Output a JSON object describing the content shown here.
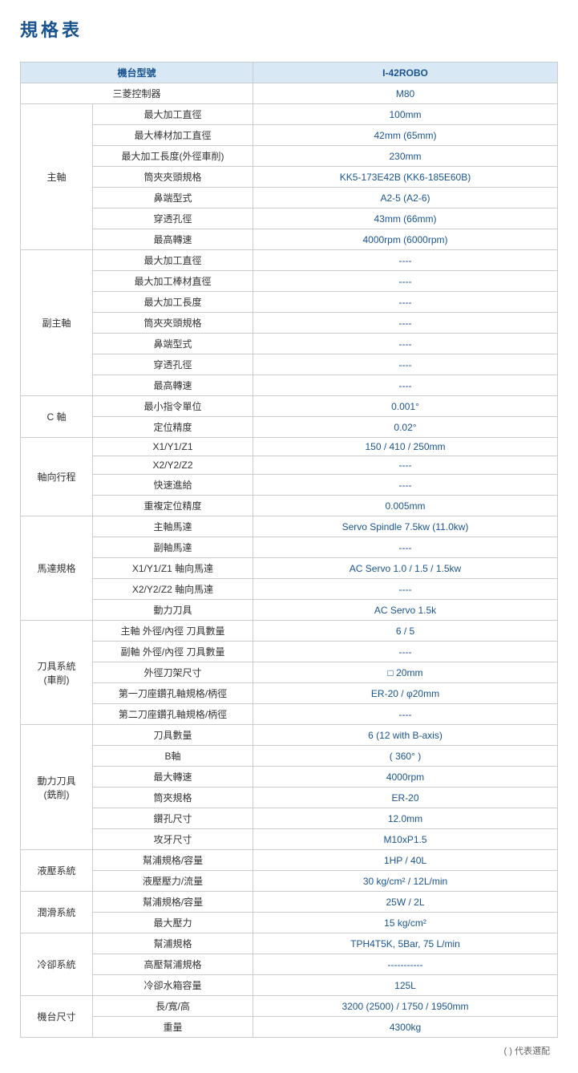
{
  "title": "規格表",
  "footnote": "(  ) 代表選配",
  "colors": {
    "title": "#1a5490",
    "header_bg": "#d9e8f5",
    "header_text": "#1a5490",
    "value_text": "#1a5490",
    "border": "#cccccc",
    "body_text": "#333333"
  },
  "header": {
    "model_label": "機台型號",
    "model_value": "I-42ROBO",
    "controller_label": "三菱控制器",
    "controller_value": "M80"
  },
  "sections": [
    {
      "category": "主軸",
      "rows": [
        {
          "param": "最大加工直徑",
          "value": "100mm"
        },
        {
          "param": "最大棒材加工直徑",
          "value": "42mm (65mm)"
        },
        {
          "param": "最大加工長度(外徑車削)",
          "value": "230mm"
        },
        {
          "param": "筒夾夾頭規格",
          "value": "KK5-173E42B (KK6-185E60B)"
        },
        {
          "param": "鼻端型式",
          "value": "A2-5 (A2-6)"
        },
        {
          "param": "穿透孔徑",
          "value": "43mm (66mm)"
        },
        {
          "param": "最高轉速",
          "value": "4000rpm (6000rpm)"
        }
      ]
    },
    {
      "category": "副主軸",
      "rows": [
        {
          "param": "最大加工直徑",
          "value": "----"
        },
        {
          "param": "最大加工棒材直徑",
          "value": "----"
        },
        {
          "param": "最大加工長度",
          "value": "----"
        },
        {
          "param": "筒夾夾頭規格",
          "value": "----"
        },
        {
          "param": "鼻端型式",
          "value": "----"
        },
        {
          "param": "穿透孔徑",
          "value": "----"
        },
        {
          "param": "最高轉速",
          "value": "----"
        }
      ]
    },
    {
      "category": "C 軸",
      "rows": [
        {
          "param": "最小指令單位",
          "value": "0.001°"
        },
        {
          "param": "定位精度",
          "value": "0.02°"
        }
      ]
    },
    {
      "category": "軸向行程",
      "rows": [
        {
          "param": "X1/Y1/Z1",
          "value": "150 / 410 / 250mm"
        },
        {
          "param": "X2/Y2/Z2",
          "value": "----"
        },
        {
          "param": "快速進給",
          "value": "----"
        },
        {
          "param": "重複定位精度",
          "value": "0.005mm"
        }
      ]
    },
    {
      "category": "馬達規格",
      "rows": [
        {
          "param": "主軸馬達",
          "value": "Servo Spindle 7.5kw (11.0kw)"
        },
        {
          "param": "副軸馬達",
          "value": "----"
        },
        {
          "param": "X1/Y1/Z1 軸向馬達",
          "value": "AC Servo 1.0 / 1.5 / 1.5kw"
        },
        {
          "param": "X2/Y2/Z2 軸向馬達",
          "value": "----"
        },
        {
          "param": "動力刀具",
          "value": "AC Servo 1.5k"
        }
      ]
    },
    {
      "category": "刀具系統\n(車削)",
      "rows": [
        {
          "param": "主軸 外徑/內徑 刀具數量",
          "value": "6 / 5"
        },
        {
          "param": "副軸 外徑/內徑 刀具數量",
          "value": "----"
        },
        {
          "param": "外徑刀架尺寸",
          "value": "□ 20mm"
        },
        {
          "param": "第一刀座鑽孔軸規格/柄徑",
          "value": "ER-20 / φ20mm"
        },
        {
          "param": "第二刀座鑽孔軸規格/柄徑",
          "value": "----"
        }
      ]
    },
    {
      "category": "動力刀具\n(銑削)",
      "rows": [
        {
          "param": "刀具數量",
          "value": "6 (12 with B-axis)"
        },
        {
          "param": "B軸",
          "value": "( 360° )"
        },
        {
          "param": "最大轉速",
          "value": "4000rpm"
        },
        {
          "param": "筒夾規格",
          "value": "ER-20"
        },
        {
          "param": "鑽孔尺寸",
          "value": "12.0mm"
        },
        {
          "param": "攻牙尺寸",
          "value": "M10xP1.5"
        }
      ]
    },
    {
      "category": "液壓系統",
      "rows": [
        {
          "param": "幫浦規格/容量",
          "value": "1HP / 40L"
        },
        {
          "param": "液壓壓力/流量",
          "value": "30 kg/cm²  /  12L/min"
        }
      ]
    },
    {
      "category": "潤滑系統",
      "rows": [
        {
          "param": "幫浦規格/容量",
          "value": "25W / 2L"
        },
        {
          "param": "最大壓力",
          "value": "15 kg/cm²"
        }
      ]
    },
    {
      "category": "冷卻系統",
      "rows": [
        {
          "param": "幫浦規格",
          "value": "TPH4T5K, 5Bar, 75 L/min"
        },
        {
          "param": "高壓幫浦規格",
          "value": "-----------"
        },
        {
          "param": "冷卻水箱容量",
          "value": "125L"
        }
      ]
    },
    {
      "category": "機台尺寸",
      "rows": [
        {
          "param": "長/寬/高",
          "value": "3200 (2500) / 1750 / 1950mm"
        },
        {
          "param": "重量",
          "value": "4300kg"
        }
      ]
    }
  ]
}
